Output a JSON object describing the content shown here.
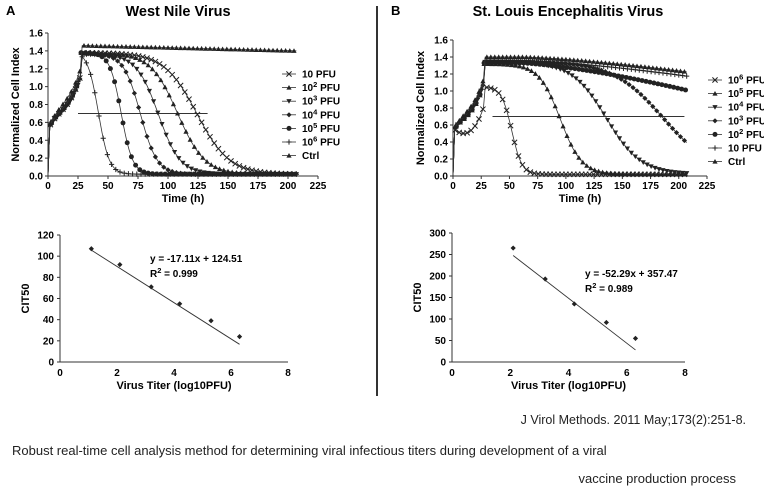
{
  "panels": [
    {
      "letter": "A",
      "title": "West Nile Virus",
      "top_chart": {
        "type": "line",
        "xlabel": "Time (h)",
        "ylabel": "Normalized Cell Index",
        "x_ticks": [
          "0",
          "25",
          "50",
          "75",
          "100",
          "125",
          "150",
          "175",
          "200",
          "225"
        ],
        "y_ticks": [
          "0.0",
          "0.2",
          "0.4",
          "0.6",
          "0.8",
          "1.0",
          "1.2",
          "1.4",
          "1.6"
        ],
        "xlim": [
          0,
          225
        ],
        "ylim": [
          0,
          1.6
        ],
        "threshold": 0.7,
        "threshold_x": [
          25,
          133
        ],
        "legend": [
          {
            "base": "10",
            "sup": "",
            "unit": " PFU",
            "marker": "x"
          },
          {
            "base": "10",
            "sup": "2",
            "unit": " PFU",
            "marker": "triangle"
          },
          {
            "base": "10",
            "sup": "3",
            "unit": " PFU",
            "marker": "triangle-down"
          },
          {
            "base": "10",
            "sup": "4",
            "unit": " PFU",
            "marker": "diamond"
          },
          {
            "base": "10",
            "sup": "5",
            "unit": " PFU",
            "marker": "circle"
          },
          {
            "base": "10",
            "sup": "6",
            "unit": " PFU",
            "marker": "plus"
          },
          {
            "base": "Ctrl",
            "sup": "",
            "unit": "",
            "marker": "triangle"
          }
        ],
        "series": [
          {
            "name": "10 PFU",
            "marker": "x",
            "drop": 124,
            "peak": 1.38
          },
          {
            "name": "10^2 PFU",
            "marker": "triangle",
            "drop": 108,
            "peak": 1.38
          },
          {
            "name": "10^3 PFU",
            "marker": "triangle-down",
            "drop": 92,
            "peak": 1.36
          },
          {
            "name": "10^4 PFU",
            "marker": "diamond",
            "drop": 77,
            "peak": 1.37
          },
          {
            "name": "10^5 PFU",
            "marker": "circle",
            "drop": 61,
            "peak": 1.38
          },
          {
            "name": "10^6 PFU",
            "marker": "plus",
            "drop": 42,
            "peak": 1.4
          },
          {
            "name": "Ctrl",
            "marker": "triangle",
            "drop": null,
            "peak": 1.46
          }
        ]
      },
      "bottom_chart": {
        "type": "scatter",
        "xlabel": "Virus Titer (log10PFU)",
        "ylabel": "CIT50",
        "x_ticks": [
          "0",
          "2",
          "4",
          "6",
          "8"
        ],
        "y_ticks": [
          "0",
          "20",
          "40",
          "60",
          "80",
          "100",
          "120"
        ],
        "xlim": [
          0,
          8
        ],
        "ylim": [
          0,
          120
        ],
        "points": [
          [
            1.1,
            107
          ],
          [
            2.1,
            92
          ],
          [
            3.2,
            71
          ],
          [
            4.2,
            55
          ],
          [
            5.3,
            39
          ],
          [
            6.3,
            24
          ]
        ],
        "fit": {
          "slope": -17.11,
          "intercept": 124.51,
          "x_range": [
            1.1,
            6.3
          ]
        },
        "equation": "y = -17.11x + 124.51",
        "r2_prefix": "R",
        "r2_sup": "2",
        "r2_value": " = 0.999"
      }
    },
    {
      "letter": "B",
      "title": "St. Louis Encephalitis Virus",
      "top_chart": {
        "type": "line",
        "xlabel": "Time (h)",
        "ylabel": "Normalized Cell Index",
        "x_ticks": [
          "0",
          "25",
          "50",
          "75",
          "100",
          "125",
          "150",
          "175",
          "200",
          "225"
        ],
        "y_ticks": [
          "0.0",
          "0.2",
          "0.4",
          "0.6",
          "0.8",
          "1.0",
          "1.2",
          "1.4",
          "1.6"
        ],
        "xlim": [
          0,
          225
        ],
        "ylim": [
          0,
          1.6
        ],
        "threshold": 0.7,
        "threshold_x": [
          35,
          205
        ],
        "legend": [
          {
            "base": "10",
            "sup": "6",
            "unit": " PFU",
            "marker": "x"
          },
          {
            "base": "10",
            "sup": "5",
            "unit": " PFU",
            "marker": "triangle"
          },
          {
            "base": "10",
            "sup": "4",
            "unit": " PFU",
            "marker": "triangle-down"
          },
          {
            "base": "10",
            "sup": "3",
            "unit": " PFU",
            "marker": "diamond"
          },
          {
            "base": "10",
            "sup": "2",
            "unit": " PFU",
            "marker": "circle"
          },
          {
            "base": "10",
            "sup": "",
            "unit": " PFU",
            "marker": "plus"
          },
          {
            "base": "Ctrl",
            "sup": "",
            "unit": "",
            "marker": "triangle"
          }
        ],
        "series": [
          {
            "name": "10^6 PFU",
            "marker": "x",
            "drop": 52,
            "peak": 1.05
          },
          {
            "name": "10^5 PFU",
            "marker": "triangle",
            "drop": 95,
            "peak": 1.32
          },
          {
            "name": "10^4 PFU",
            "marker": "triangle-down",
            "drop": 136,
            "peak": 1.34
          },
          {
            "name": "10^3 PFU",
            "marker": "diamond",
            "drop": 186,
            "peak": 1.35
          },
          {
            "name": "10^2 PFU",
            "marker": "circle",
            "drop": null,
            "peak": 1.33,
            "end": 1.0
          },
          {
            "name": "10 PFU",
            "marker": "plus",
            "drop": null,
            "peak": 1.36,
            "end": 1.17
          },
          {
            "name": "Ctrl",
            "marker": "triangle",
            "drop": null,
            "peak": 1.4,
            "end": 1.22
          }
        ]
      },
      "bottom_chart": {
        "type": "scatter",
        "xlabel": "Virus Titer (log10PFU)",
        "ylabel": "CIT50",
        "x_ticks": [
          "0",
          "2",
          "4",
          "6",
          "8"
        ],
        "y_ticks": [
          "0",
          "50",
          "100",
          "150",
          "200",
          "250",
          "300"
        ],
        "xlim": [
          0,
          8
        ],
        "ylim": [
          0,
          300
        ],
        "points": [
          [
            2.1,
            265
          ],
          [
            3.2,
            193
          ],
          [
            4.2,
            135
          ],
          [
            5.3,
            92
          ],
          [
            6.3,
            55
          ]
        ],
        "fit": {
          "slope": -52.29,
          "intercept": 357.47,
          "x_range": [
            2.1,
            6.3
          ]
        },
        "equation": "y = -52.29x + 357.47",
        "r2_prefix": "R",
        "r2_sup": "2",
        "r2_value": " = 0.989"
      }
    }
  ],
  "citation": "J Virol Methods. 2011 May;173(2):251-8.",
  "caption_line1": "Robust real-time cell analysis method for determining viral infectious titers during development of a viral",
  "caption_line2": "vaccine production process"
}
